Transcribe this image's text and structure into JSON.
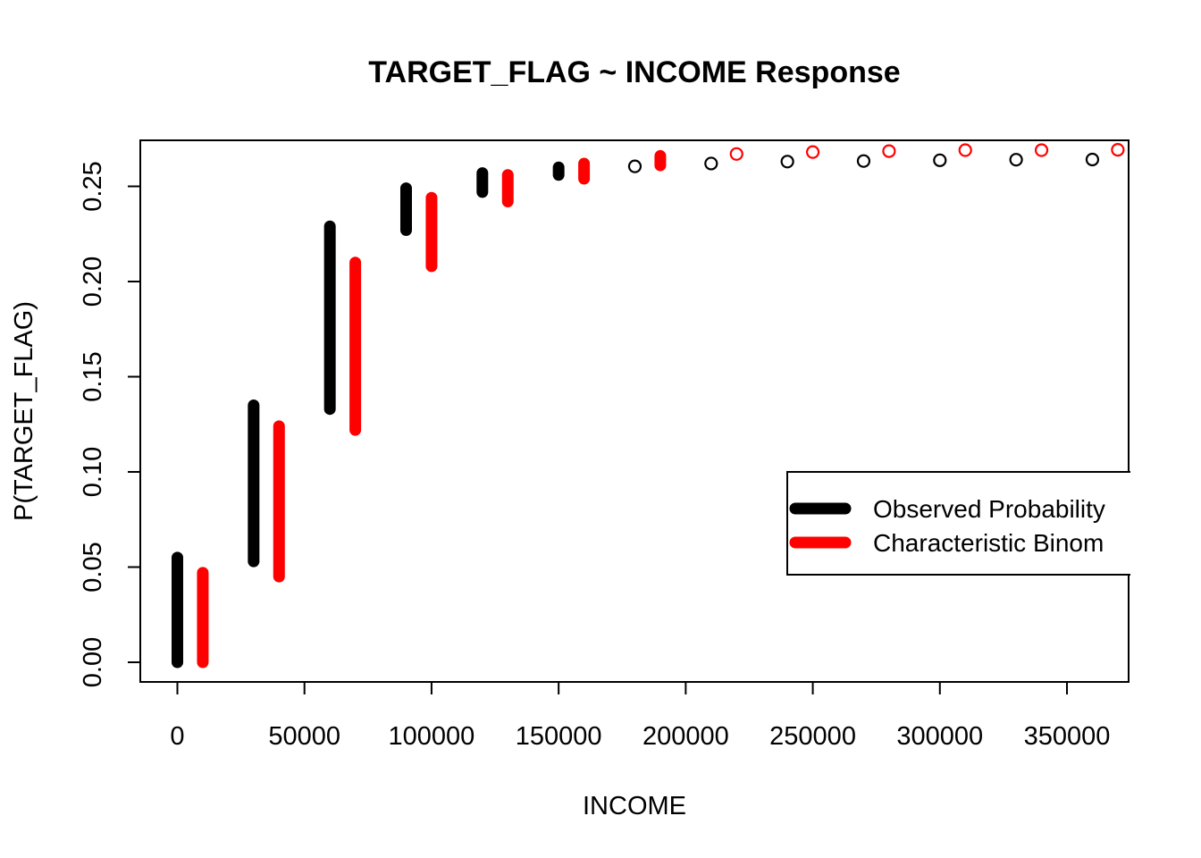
{
  "chart_data": {
    "type": "scatter",
    "title": "TARGET_FLAG ~ INCOME Response",
    "xlabel": "INCOME",
    "ylabel": "P(TARGET_FLAG)",
    "xlim": [
      -15000,
      375000
    ],
    "ylim": [
      -0.01,
      0.275
    ],
    "x_ticks": [
      0,
      50000,
      100000,
      150000,
      200000,
      250000,
      300000,
      350000
    ],
    "x_tick_labels": [
      "0",
      "50000",
      "100000",
      "150000",
      "200000",
      "250000",
      "300000",
      "350000"
    ],
    "y_ticks": [
      0.0,
      0.05,
      0.1,
      0.15,
      0.2,
      0.25
    ],
    "y_tick_labels": [
      "0.00",
      "0.05",
      "0.10",
      "0.15",
      "0.20",
      "0.25"
    ],
    "grid": false,
    "legend": {
      "position": "right",
      "entries": [
        {
          "label": "Observed Probability",
          "color": "#000000"
        },
        {
          "label": "Characteristic Binom",
          "color": "#ff0000"
        }
      ]
    },
    "series": [
      {
        "name": "Observed Probability",
        "color": "#000000",
        "ranges": [
          {
            "x": 0,
            "ymin": 0.0,
            "ymax": 0.055
          },
          {
            "x": 30000,
            "ymin": 0.053,
            "ymax": 0.135
          },
          {
            "x": 60000,
            "ymin": 0.133,
            "ymax": 0.229
          },
          {
            "x": 90000,
            "ymin": 0.227,
            "ymax": 0.249
          },
          {
            "x": 120000,
            "ymin": 0.247,
            "ymax": 0.257
          },
          {
            "x": 150000,
            "ymin": 0.256,
            "ymax": 0.26
          }
        ],
        "points": [
          {
            "x": 180000,
            "y": 0.2605
          },
          {
            "x": 210000,
            "y": 0.262
          },
          {
            "x": 240000,
            "y": 0.263
          },
          {
            "x": 270000,
            "y": 0.2633
          },
          {
            "x": 300000,
            "y": 0.2637
          },
          {
            "x": 330000,
            "y": 0.264
          },
          {
            "x": 360000,
            "y": 0.2641
          }
        ]
      },
      {
        "name": "Characteristic Binom",
        "color": "#ff0000",
        "ranges": [
          {
            "x": 10000,
            "ymin": 0.0,
            "ymax": 0.047
          },
          {
            "x": 40000,
            "ymin": 0.045,
            "ymax": 0.124
          },
          {
            "x": 70000,
            "ymin": 0.122,
            "ymax": 0.21
          },
          {
            "x": 100000,
            "ymin": 0.208,
            "ymax": 0.244
          },
          {
            "x": 130000,
            "ymin": 0.242,
            "ymax": 0.256
          },
          {
            "x": 160000,
            "ymin": 0.254,
            "ymax": 0.262
          },
          {
            "x": 190000,
            "ymin": 0.261,
            "ymax": 0.266
          }
        ],
        "points": [
          {
            "x": 220000,
            "y": 0.267
          },
          {
            "x": 250000,
            "y": 0.268
          },
          {
            "x": 280000,
            "y": 0.2685
          },
          {
            "x": 310000,
            "y": 0.269
          },
          {
            "x": 340000,
            "y": 0.269
          },
          {
            "x": 370000,
            "y": 0.2692
          }
        ]
      }
    ]
  }
}
